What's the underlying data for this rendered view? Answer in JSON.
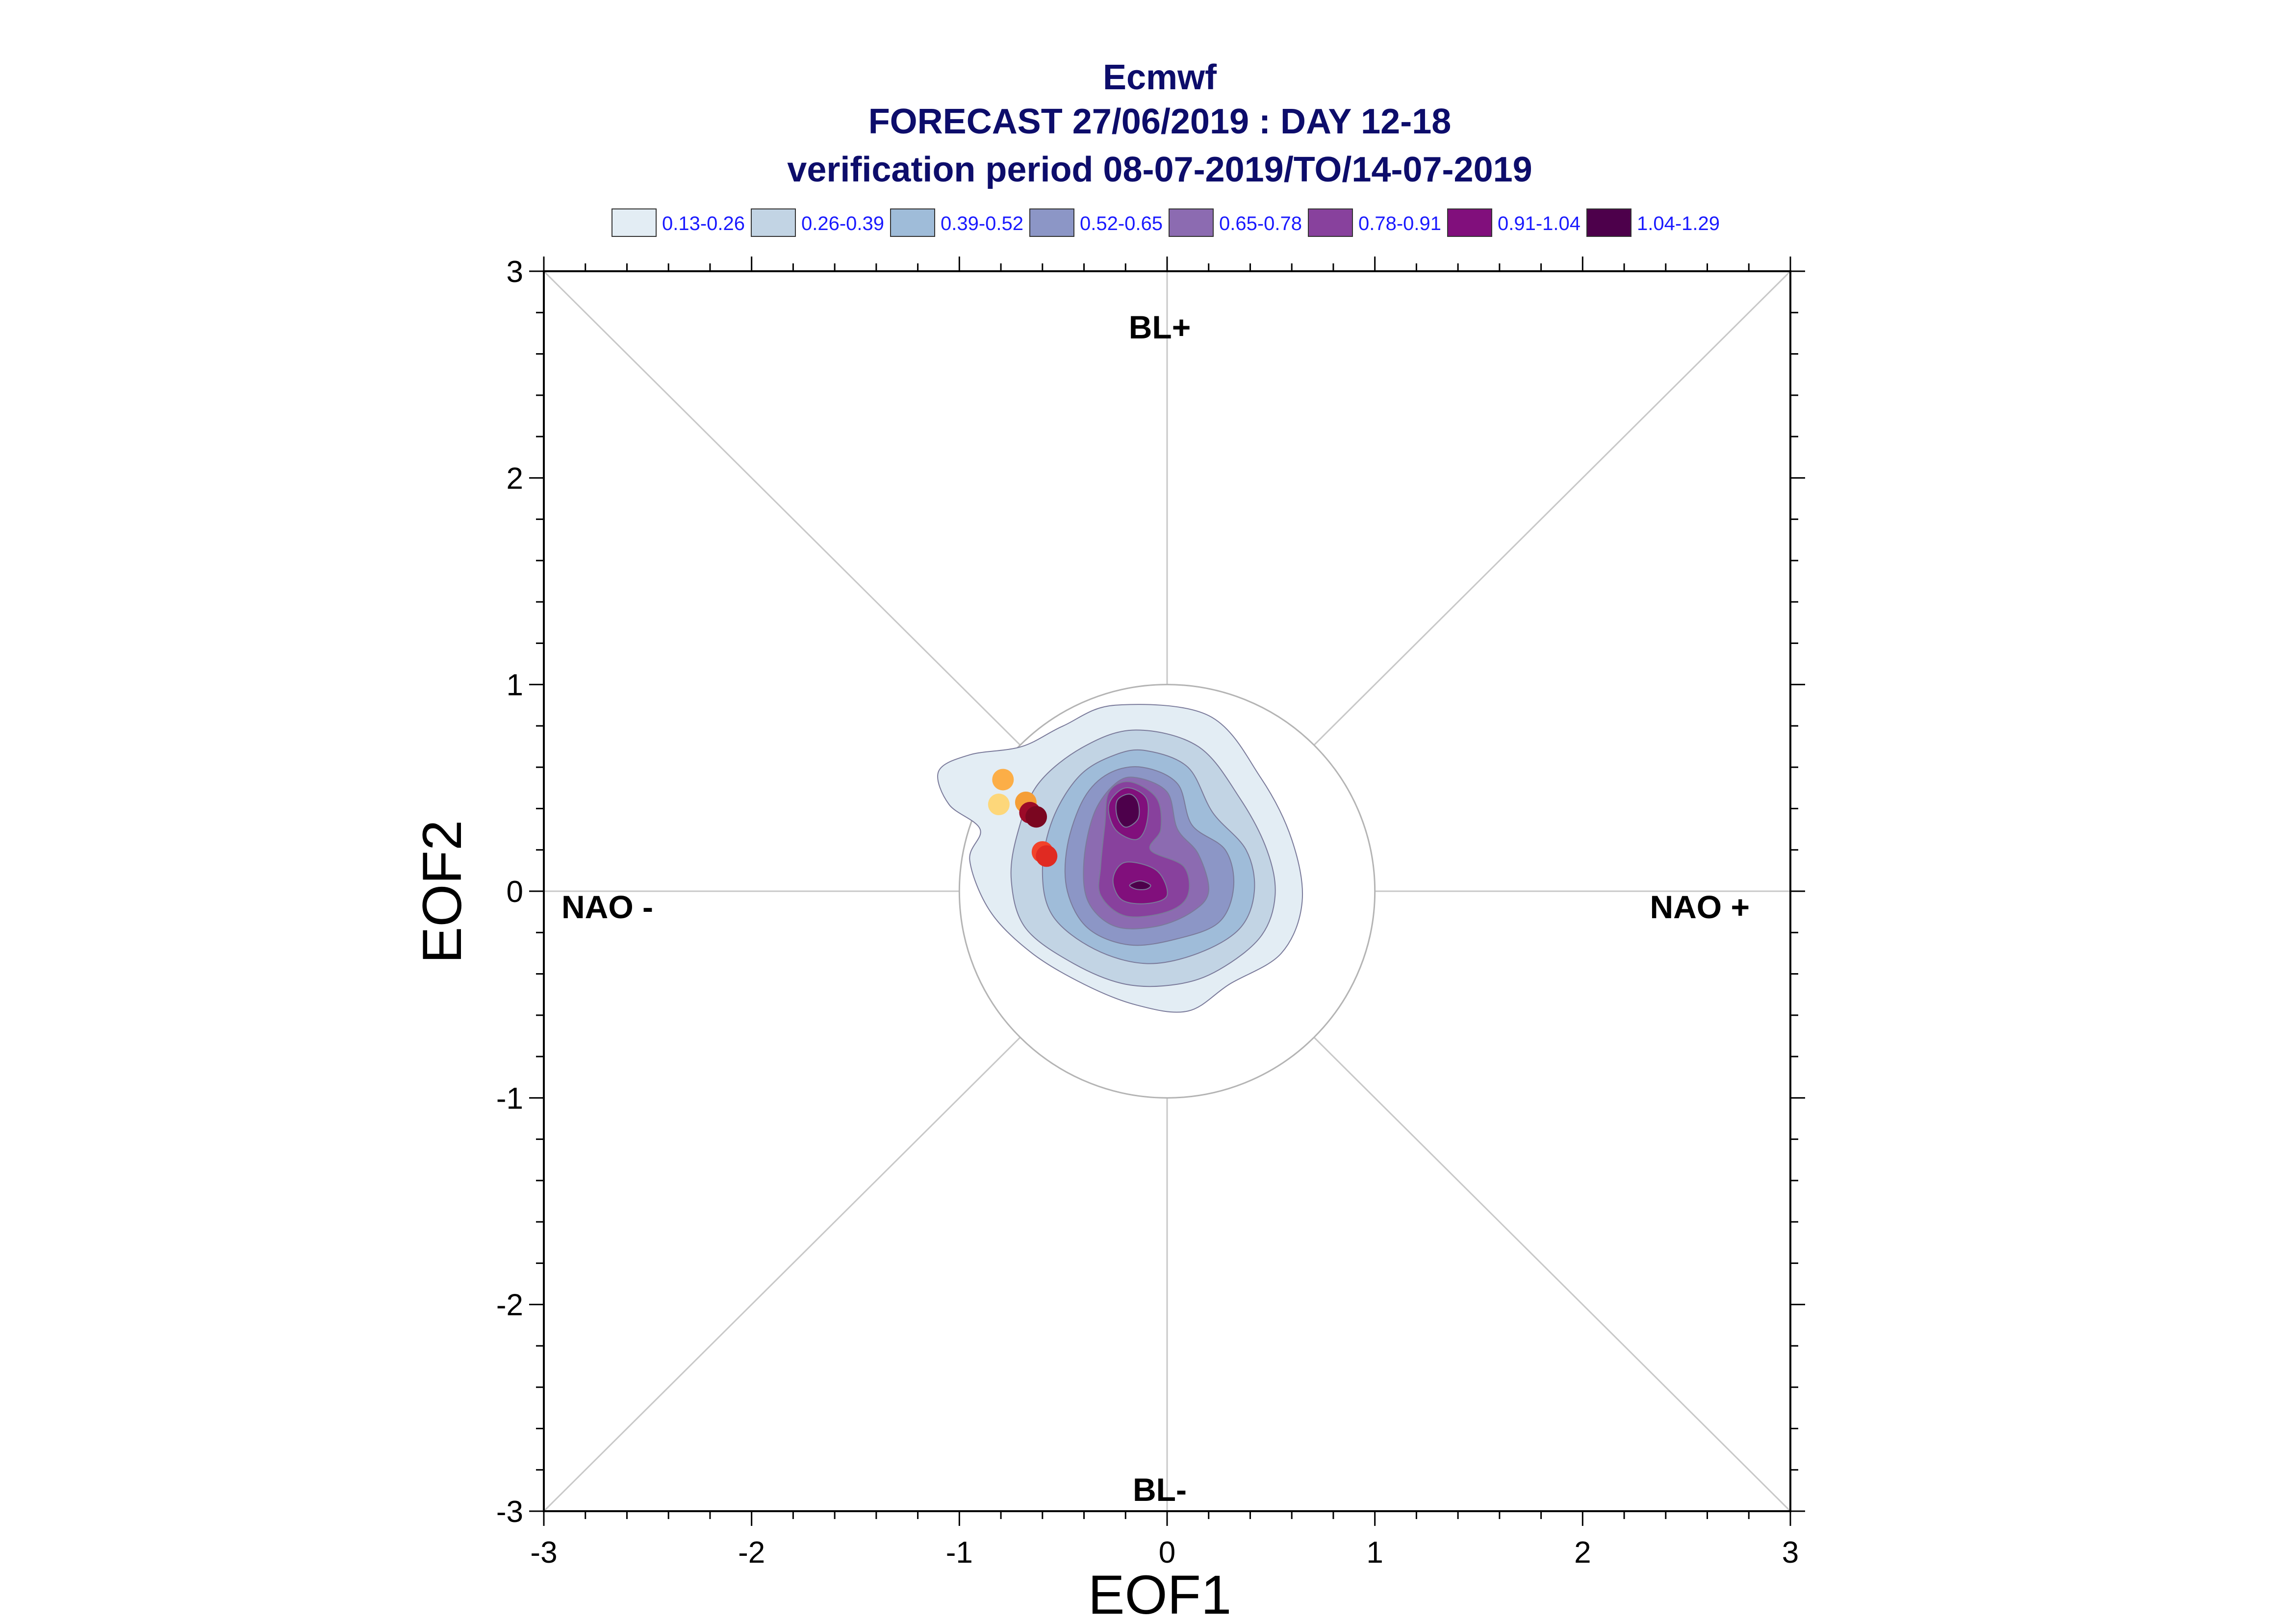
{
  "chart_data": {
    "type": "contour-scatter",
    "title": "Ecmwf",
    "subtitle_1": "FORECAST 27/06/2019 : DAY 12-18",
    "subtitle_2": "verification period 08-07-2019/TO/14-07-2019",
    "xlabel": "EOF1",
    "ylabel": "EOF2",
    "xlim": [
      -3,
      3
    ],
    "ylim": [
      -3,
      3
    ],
    "xticks": [
      "-3",
      "-2",
      "-1",
      "0",
      "1",
      "2",
      "3"
    ],
    "yticks": [
      "3",
      "2",
      "1",
      "0",
      "-1",
      "-2",
      "-3"
    ],
    "xtick_values": [
      -3,
      -2,
      -1,
      0,
      1,
      2,
      3
    ],
    "ytick_values": [
      3,
      2,
      1,
      0,
      -1,
      -2,
      -3
    ],
    "regime_labels": {
      "top": "BL+",
      "bottom": "BL-",
      "left": "NAO -",
      "right": "NAO +"
    },
    "reference_circle_radius": 1,
    "legend": [
      {
        "label": "0.13-0.26",
        "color": "#e3edf4"
      },
      {
        "label": "0.26-0.39",
        "color": "#c2d4e4"
      },
      {
        "label": "0.39-0.52",
        "color": "#9fbcd9"
      },
      {
        "label": "0.52-0.65",
        "color": "#8c96c6"
      },
      {
        "label": "0.65-0.78",
        "color": "#8c6bb1"
      },
      {
        "label": "0.78-0.91",
        "color": "#88419d"
      },
      {
        "label": "0.91-1.04",
        "color": "#810f7c"
      },
      {
        "label": "1.04-1.29",
        "color": "#4d004b"
      }
    ],
    "contours": [
      {
        "level": "0.13-0.26",
        "points": [
          [
            -0.25,
            0.9
          ],
          [
            0.2,
            0.85
          ],
          [
            0.45,
            0.55
          ],
          [
            0.6,
            0.25
          ],
          [
            0.65,
            -0.05
          ],
          [
            0.55,
            -0.3
          ],
          [
            0.3,
            -0.45
          ],
          [
            0.1,
            -0.58
          ],
          [
            -0.15,
            -0.55
          ],
          [
            -0.4,
            -0.45
          ],
          [
            -0.65,
            -0.3
          ],
          [
            -0.85,
            -0.1
          ],
          [
            -0.95,
            0.15
          ],
          [
            -0.9,
            0.3
          ],
          [
            -1.05,
            0.42
          ],
          [
            -1.1,
            0.58
          ],
          [
            -0.95,
            0.66
          ],
          [
            -0.7,
            0.7
          ],
          [
            -0.5,
            0.8
          ]
        ]
      },
      {
        "level": "0.26-0.39",
        "points": [
          [
            -0.15,
            0.78
          ],
          [
            0.15,
            0.7
          ],
          [
            0.35,
            0.45
          ],
          [
            0.48,
            0.2
          ],
          [
            0.52,
            -0.02
          ],
          [
            0.45,
            -0.22
          ],
          [
            0.25,
            -0.38
          ],
          [
            0.05,
            -0.45
          ],
          [
            -0.2,
            -0.45
          ],
          [
            -0.45,
            -0.35
          ],
          [
            -0.68,
            -0.18
          ],
          [
            -0.75,
            0.05
          ],
          [
            -0.72,
            0.28
          ],
          [
            -0.62,
            0.52
          ],
          [
            -0.4,
            0.7
          ]
        ]
      },
      {
        "level": "0.39-0.52",
        "points": [
          [
            -0.1,
            0.68
          ],
          [
            0.1,
            0.6
          ],
          [
            0.22,
            0.38
          ],
          [
            0.38,
            0.2
          ],
          [
            0.42,
            0.0
          ],
          [
            0.35,
            -0.18
          ],
          [
            0.15,
            -0.3
          ],
          [
            -0.1,
            -0.35
          ],
          [
            -0.35,
            -0.28
          ],
          [
            -0.55,
            -0.12
          ],
          [
            -0.6,
            0.1
          ],
          [
            -0.55,
            0.35
          ],
          [
            -0.42,
            0.56
          ],
          [
            -0.25,
            0.66
          ]
        ]
      },
      {
        "level": "0.52-0.65",
        "points": [
          [
            -0.12,
            0.6
          ],
          [
            0.05,
            0.52
          ],
          [
            0.12,
            0.32
          ],
          [
            0.28,
            0.2
          ],
          [
            0.32,
            0.02
          ],
          [
            0.25,
            -0.15
          ],
          [
            0.05,
            -0.23
          ],
          [
            -0.18,
            -0.26
          ],
          [
            -0.38,
            -0.18
          ],
          [
            -0.48,
            0.0
          ],
          [
            -0.48,
            0.22
          ],
          [
            -0.4,
            0.45
          ],
          [
            -0.28,
            0.57
          ]
        ]
      },
      {
        "level": "0.65-0.78",
        "points": [
          [
            -0.15,
            0.55
          ],
          [
            0.0,
            0.48
          ],
          [
            0.05,
            0.3
          ],
          [
            0.15,
            0.18
          ],
          [
            0.2,
            0.0
          ],
          [
            0.12,
            -0.1
          ],
          [
            -0.05,
            -0.17
          ],
          [
            -0.25,
            -0.17
          ],
          [
            -0.38,
            -0.05
          ],
          [
            -0.4,
            0.15
          ],
          [
            -0.35,
            0.38
          ],
          [
            -0.25,
            0.52
          ]
        ]
      },
      {
        "level": "0.78-0.91",
        "points": [
          [
            -0.18,
            0.53
          ],
          [
            -0.05,
            0.45
          ],
          [
            -0.03,
            0.3
          ],
          [
            -0.08,
            0.2
          ],
          [
            0.08,
            0.12
          ],
          [
            0.1,
            -0.02
          ],
          [
            0.0,
            -0.1
          ],
          [
            -0.2,
            -0.12
          ],
          [
            -0.32,
            -0.02
          ],
          [
            -0.32,
            0.12
          ],
          [
            -0.3,
            0.32
          ],
          [
            -0.28,
            0.48
          ]
        ]
      },
      {
        "level": "0.91-1.04",
        "points": [
          [
            -0.2,
            0.5
          ],
          [
            -0.1,
            0.45
          ],
          [
            -0.1,
            0.32
          ],
          [
            -0.15,
            0.25
          ],
          [
            -0.25,
            0.3
          ],
          [
            -0.28,
            0.42
          ]
        ]
      },
      {
        "level": "0.91-1.04",
        "points": [
          [
            -0.2,
            0.14
          ],
          [
            -0.05,
            0.1
          ],
          [
            0.0,
            -0.02
          ],
          [
            -0.1,
            -0.06
          ],
          [
            -0.22,
            -0.04
          ],
          [
            -0.26,
            0.06
          ]
        ]
      },
      {
        "level": "1.04-1.29",
        "points": [
          [
            -0.18,
            0.47
          ],
          [
            -0.14,
            0.43
          ],
          [
            -0.14,
            0.35
          ],
          [
            -0.2,
            0.31
          ],
          [
            -0.24,
            0.36
          ],
          [
            -0.24,
            0.44
          ]
        ]
      },
      {
        "level": "1.04-1.29",
        "points": [
          [
            -0.13,
            0.05
          ],
          [
            -0.08,
            0.03
          ],
          [
            -0.1,
            0.01
          ],
          [
            -0.15,
            0.01
          ],
          [
            -0.18,
            0.03
          ]
        ]
      }
    ],
    "scatter": [
      {
        "x": -0.79,
        "y": 0.54,
        "color": "#fcae47"
      },
      {
        "x": -0.81,
        "y": 0.42,
        "color": "#fdd77a"
      },
      {
        "x": -0.68,
        "y": 0.43,
        "color": "#f59e36"
      },
      {
        "x": -0.66,
        "y": 0.38,
        "color": "#9c0a28"
      },
      {
        "x": -0.63,
        "y": 0.36,
        "color": "#7a0620"
      },
      {
        "x": -0.6,
        "y": 0.19,
        "color": "#f2422a"
      },
      {
        "x": -0.58,
        "y": 0.17,
        "color": "#e02a22"
      }
    ]
  }
}
